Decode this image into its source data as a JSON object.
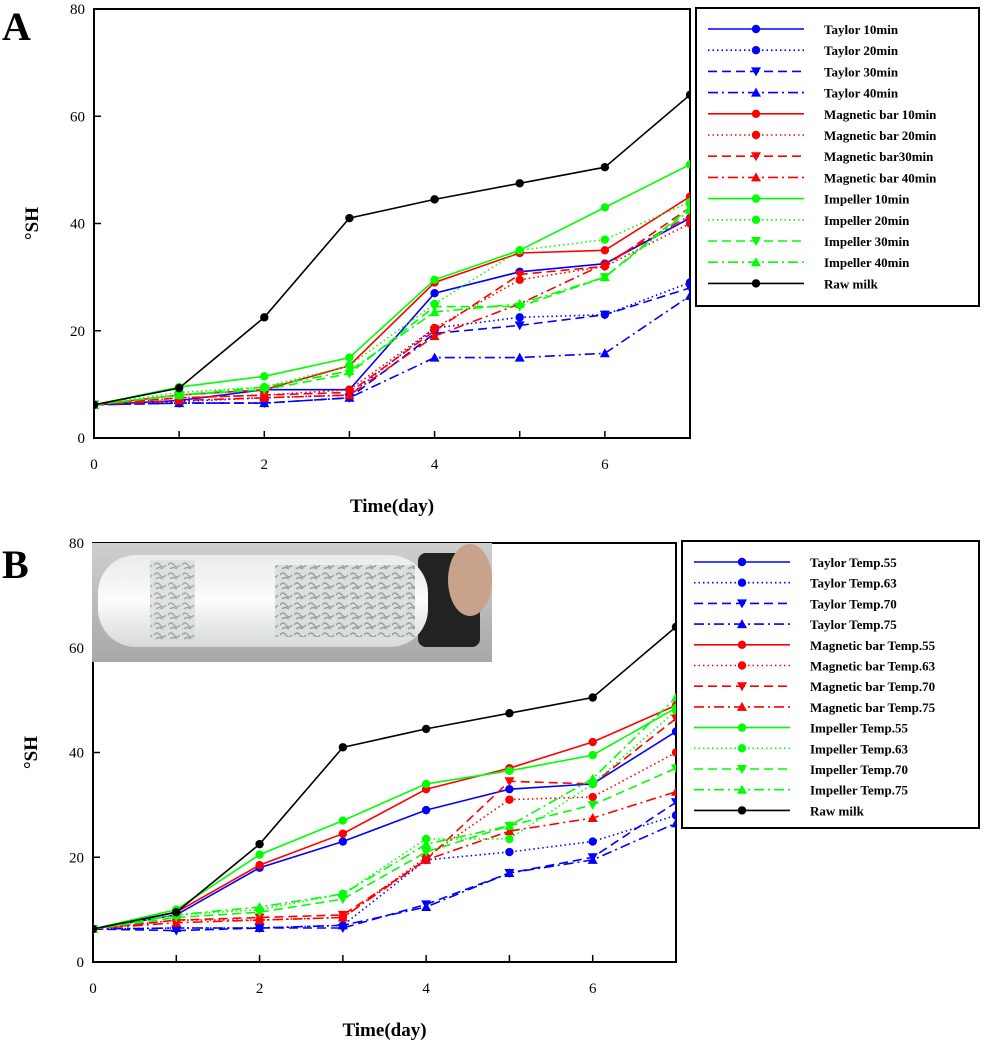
{
  "chart_data": [
    {
      "panel": "A",
      "type": "line",
      "xlabel": "Time(day)",
      "ylabel": "°SH",
      "xlim": [
        0,
        7
      ],
      "ylim": [
        0,
        80
      ],
      "xticks": [
        0,
        2,
        4,
        6
      ],
      "yticks": [
        0,
        20,
        40,
        60,
        80
      ],
      "legend_position": "right",
      "x": [
        0,
        1,
        2,
        3,
        4,
        5,
        6,
        7
      ],
      "series": [
        {
          "name": "Taylor 10min",
          "color": "#0000ff",
          "dash": "solid",
          "marker": "circle",
          "values": [
            6.2,
            7.0,
            9.0,
            9.0,
            27.0,
            31.0,
            32.5,
            41.0
          ]
        },
        {
          "name": "Taylor 20min",
          "color": "#0000ff",
          "dash": "dot",
          "marker": "circle",
          "values": [
            6.2,
            6.8,
            7.5,
            8.0,
            20.5,
            22.5,
            23.0,
            29.0
          ]
        },
        {
          "name": "Taylor 30min",
          "color": "#0000ff",
          "dash": "dash",
          "marker": "triangle-down",
          "values": [
            6.2,
            6.5,
            6.5,
            7.5,
            19.5,
            21.0,
            23.0,
            28.0
          ]
        },
        {
          "name": "Taylor 40min",
          "color": "#0000ff",
          "dash": "dashdot",
          "marker": "triangle-up",
          "values": [
            6.2,
            6.5,
            6.5,
            7.5,
            15.0,
            15.0,
            15.8,
            26.5
          ]
        },
        {
          "name": "Magnetic bar 10min",
          "color": "#ff0000",
          "dash": "solid",
          "marker": "circle",
          "values": [
            6.2,
            8.0,
            9.0,
            13.5,
            29.0,
            34.5,
            35.0,
            45.0
          ]
        },
        {
          "name": "Magnetic bar 20min",
          "color": "#ff0000",
          "dash": "dot",
          "marker": "circle",
          "values": [
            6.2,
            7.5,
            8.0,
            9.0,
            20.5,
            29.5,
            32.0,
            40.0
          ]
        },
        {
          "name": "Magnetic bar30min",
          "color": "#ff0000",
          "dash": "dash",
          "marker": "triangle-down",
          "values": [
            6.2,
            7.5,
            8.0,
            8.5,
            20.0,
            30.5,
            32.0,
            43.0
          ]
        },
        {
          "name": "Magnetic bar 40min",
          "color": "#ff0000",
          "dash": "dashdot",
          "marker": "triangle-up",
          "values": [
            6.2,
            7.0,
            7.5,
            8.0,
            19.0,
            25.0,
            32.5,
            41.5
          ]
        },
        {
          "name": "Impeller 10min",
          "color": "#00ff00",
          "dash": "solid",
          "marker": "circle",
          "values": [
            6.2,
            9.5,
            11.5,
            15.0,
            29.5,
            35.0,
            43.0,
            51.0
          ]
        },
        {
          "name": "Impeller 20min",
          "color": "#00ff00",
          "dash": "dot",
          "marker": "circle",
          "values": [
            6.2,
            8.5,
            9.5,
            13.5,
            25.0,
            35.0,
            37.0,
            44.0
          ]
        },
        {
          "name": "Impeller 30min",
          "color": "#00ff00",
          "dash": "dash",
          "marker": "triangle-down",
          "values": [
            6.2,
            8.0,
            9.0,
            12.0,
            24.5,
            24.5,
            30.0,
            43.0
          ]
        },
        {
          "name": "Impeller 40min",
          "color": "#00ff00",
          "dash": "dashdot",
          "marker": "triangle-up",
          "values": [
            6.2,
            8.0,
            9.5,
            12.5,
            23.5,
            25.0,
            30.0,
            42.5
          ]
        },
        {
          "name": "Raw milk",
          "color": "#000000",
          "dash": "solid",
          "marker": "circle",
          "values": [
            6.2,
            9.3,
            22.5,
            41.0,
            44.5,
            47.5,
            50.5,
            64.0
          ]
        }
      ]
    },
    {
      "panel": "B",
      "type": "line",
      "xlabel": "Time(day)",
      "ylabel": "°SH",
      "xlim": [
        0,
        7
      ],
      "ylim": [
        0,
        80
      ],
      "xticks": [
        0,
        2,
        4,
        6
      ],
      "yticks": [
        0,
        20,
        40,
        60,
        80
      ],
      "legend_position": "right",
      "inset": "photo of a white bottle with curdled milk",
      "x": [
        0,
        1,
        2,
        3,
        4,
        5,
        6,
        7
      ],
      "series": [
        {
          "name": "Taylor Temp.55",
          "color": "#0000ff",
          "dash": "solid",
          "marker": "circle",
          "values": [
            6.3,
            9.0,
            18.0,
            23.0,
            29.0,
            33.0,
            34.0,
            44.0
          ]
        },
        {
          "name": "Taylor Temp.63",
          "color": "#0000ff",
          "dash": "dot",
          "marker": "circle",
          "values": [
            6.3,
            6.5,
            6.5,
            7.0,
            19.5,
            21.0,
            23.0,
            28.0
          ]
        },
        {
          "name": "Taylor Temp.70",
          "color": "#0000ff",
          "dash": "dash",
          "marker": "triangle-down",
          "values": [
            6.3,
            6.0,
            6.5,
            6.5,
            11.0,
            17.0,
            20.0,
            30.5
          ]
        },
        {
          "name": "Taylor Temp.75",
          "color": "#0000ff",
          "dash": "dashdot",
          "marker": "triangle-up",
          "values": [
            6.3,
            6.5,
            6.5,
            7.0,
            10.5,
            17.0,
            19.5,
            26.5
          ]
        },
        {
          "name": "Magnetic bar Temp.55",
          "color": "#ff0000",
          "dash": "solid",
          "marker": "circle",
          "values": [
            6.3,
            9.5,
            18.5,
            24.5,
            33.0,
            37.0,
            42.0,
            49.0
          ]
        },
        {
          "name": "Magnetic bar Temp.63",
          "color": "#ff0000",
          "dash": "dot",
          "marker": "circle",
          "values": [
            6.3,
            8.0,
            8.0,
            8.5,
            20.0,
            31.0,
            31.5,
            40.0
          ]
        },
        {
          "name": "Magnetic bar Temp.70",
          "color": "#ff0000",
          "dash": "dash",
          "marker": "triangle-down",
          "values": [
            6.3,
            8.0,
            8.5,
            9.0,
            19.5,
            34.5,
            34.0,
            46.5
          ]
        },
        {
          "name": "Magnetic bar Temp.75",
          "color": "#ff0000",
          "dash": "dashdot",
          "marker": "triangle-up",
          "values": [
            6.3,
            7.5,
            8.0,
            8.5,
            19.5,
            25.0,
            27.5,
            32.5
          ]
        },
        {
          "name": "Impeller Temp.55",
          "color": "#00ff00",
          "dash": "solid",
          "marker": "circle",
          "values": [
            6.3,
            10.0,
            20.5,
            27.0,
            34.0,
            36.5,
            39.5,
            48.5
          ]
        },
        {
          "name": "Impeller Temp.63",
          "color": "#00ff00",
          "dash": "dot",
          "marker": "circle",
          "values": [
            6.3,
            9.0,
            10.0,
            13.0,
            23.5,
            23.5,
            34.0,
            48.0
          ]
        },
        {
          "name": "Impeller Temp.70",
          "color": "#00ff00",
          "dash": "dash",
          "marker": "triangle-down",
          "values": [
            6.3,
            8.5,
            9.5,
            12.0,
            21.0,
            26.0,
            30.0,
            37.0
          ]
        },
        {
          "name": "Impeller Temp.75",
          "color": "#00ff00",
          "dash": "dashdot",
          "marker": "triangle-up",
          "values": [
            6.3,
            9.0,
            10.5,
            13.0,
            22.5,
            26.0,
            35.0,
            50.5
          ]
        },
        {
          "name": "Raw milk",
          "color": "#000000",
          "dash": "solid",
          "marker": "circle",
          "values": [
            6.3,
            9.5,
            22.5,
            41.0,
            44.5,
            47.5,
            50.5,
            64.0
          ]
        }
      ]
    }
  ]
}
